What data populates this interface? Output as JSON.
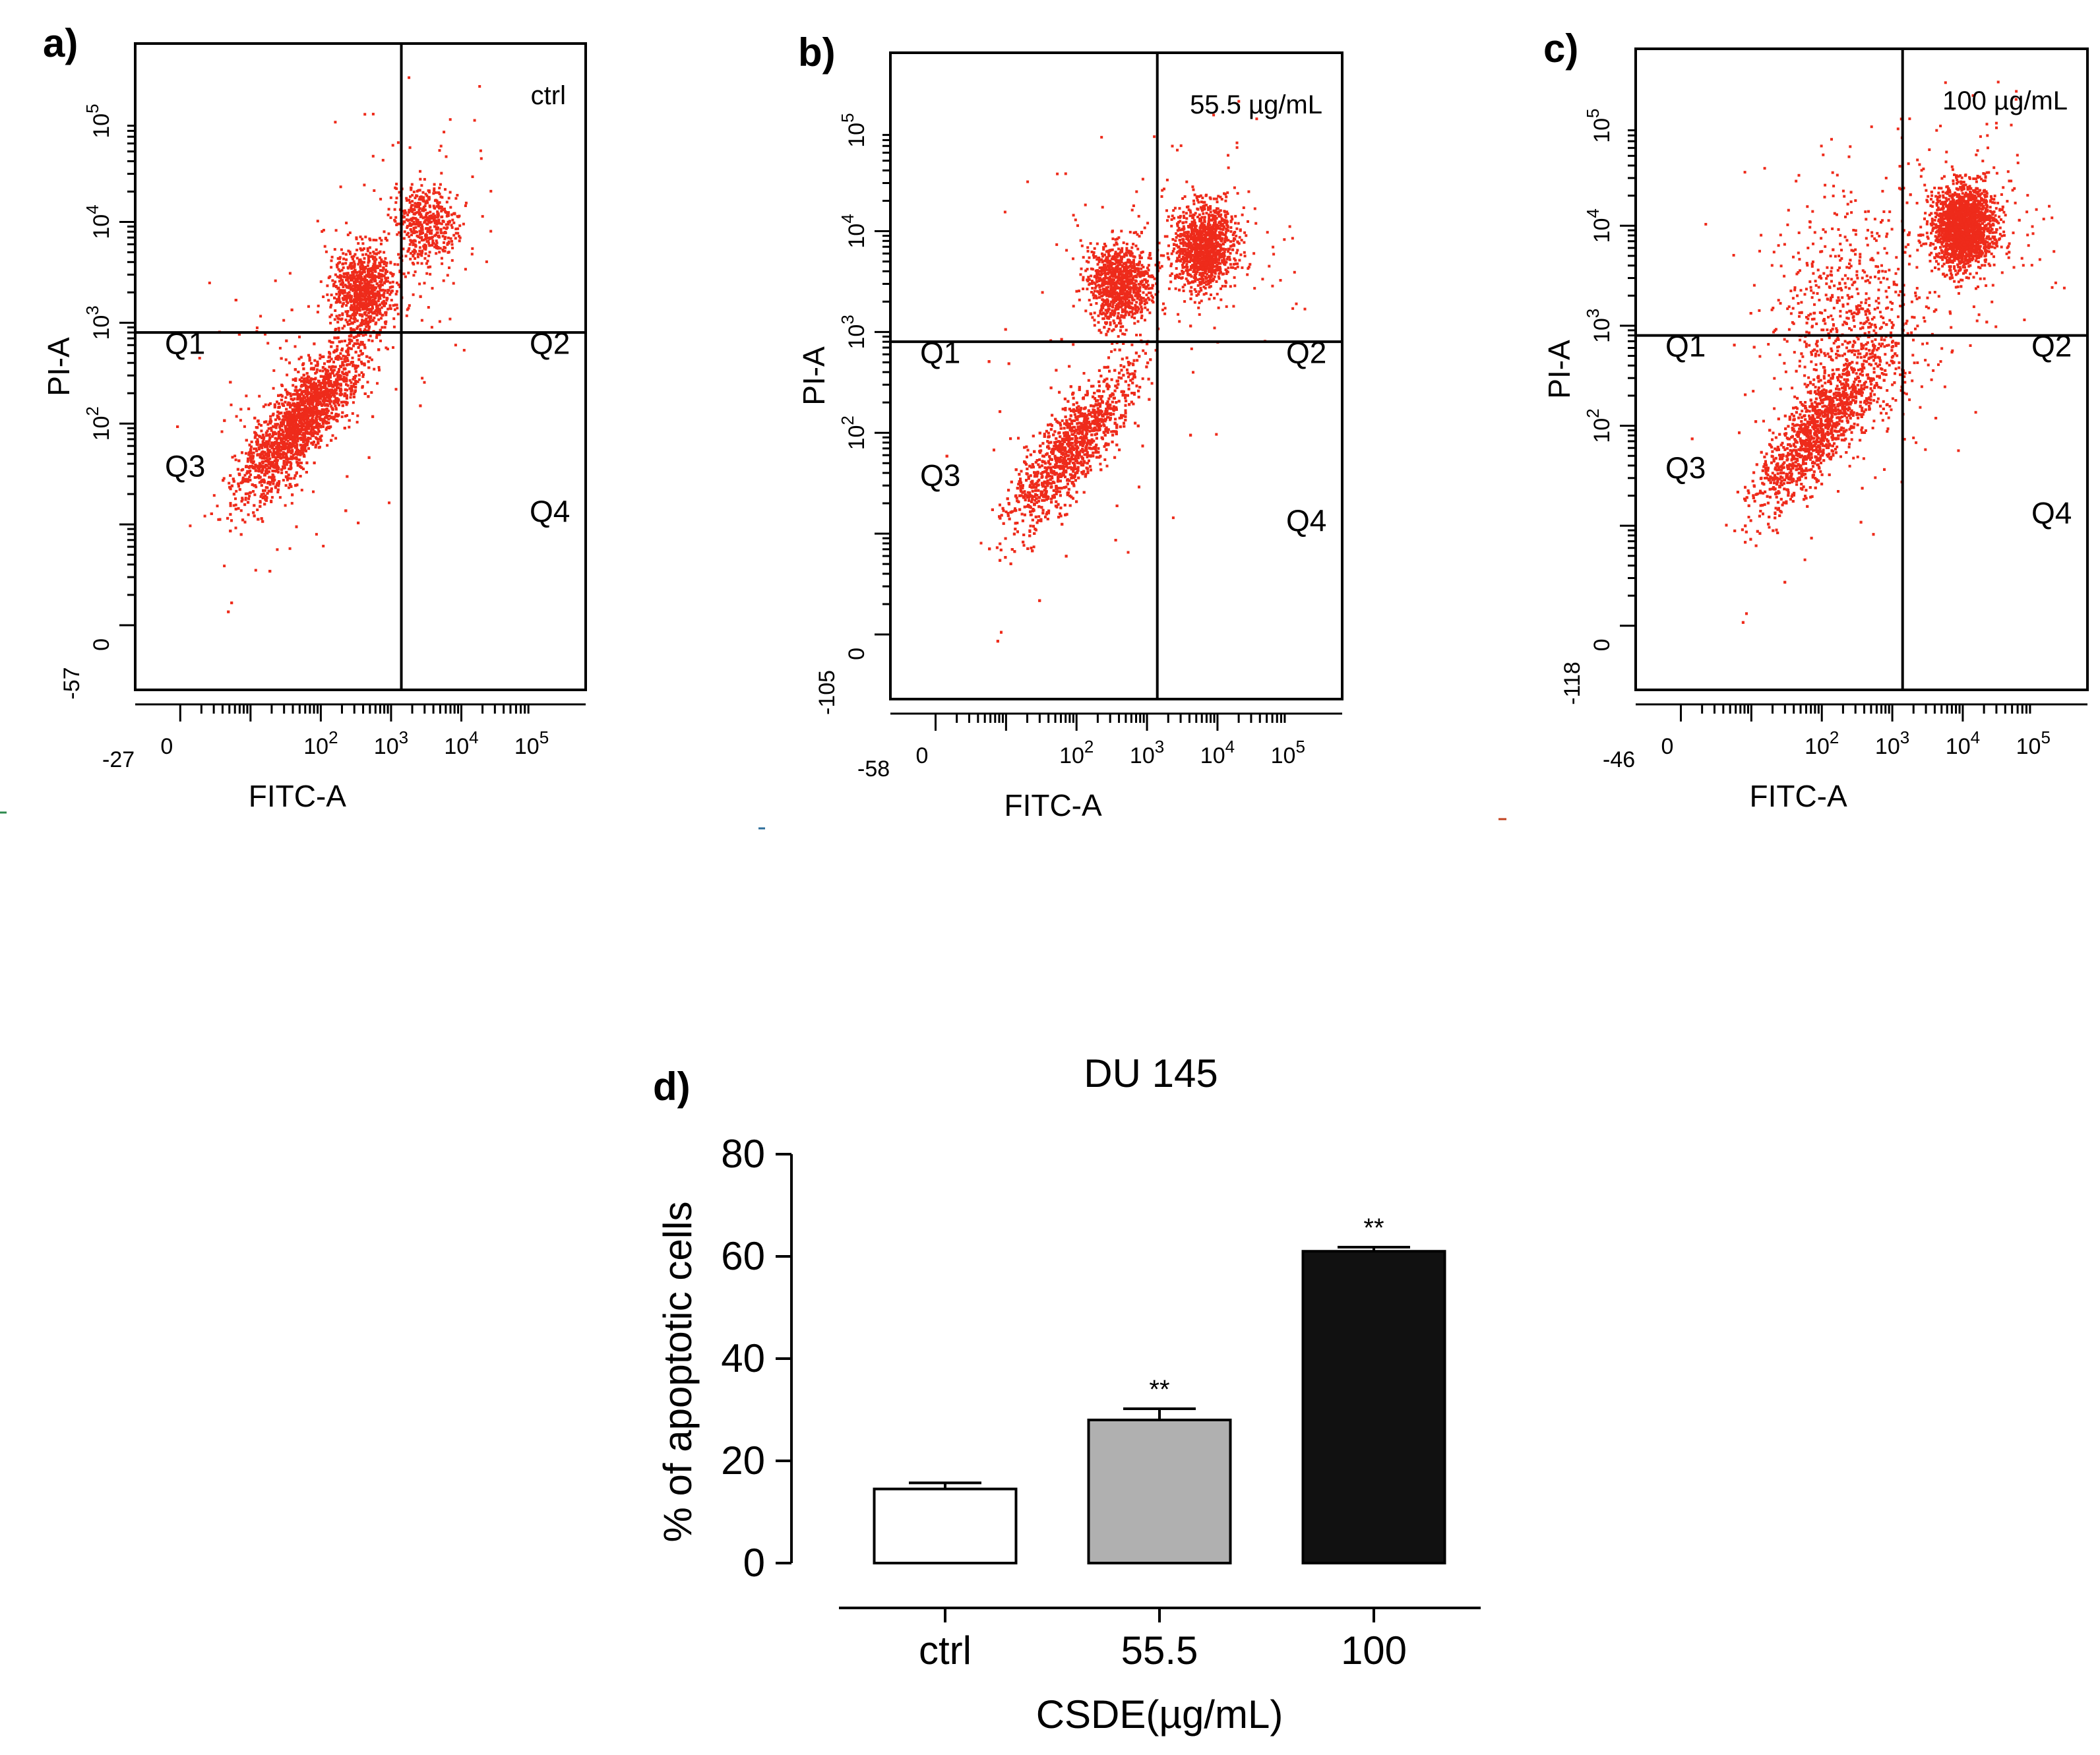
{
  "chart_data": [
    {
      "type": "scatter",
      "panel_label": "a)",
      "condition_label": "ctrl",
      "xlabel": "FITC-A",
      "ylabel": "PI-A",
      "x_min_label": "-27",
      "y_min_label": "-57",
      "x_ticks": [
        "0",
        "10^2",
        "10^3",
        "10^4",
        "10^5"
      ],
      "y_ticks": [
        "0",
        "10^2",
        "10^3",
        "10^4",
        "10^5"
      ],
      "quadrants": [
        "Q1",
        "Q2",
        "Q3",
        "Q4"
      ],
      "gate": {
        "x": 1400,
        "y": 800
      },
      "point_color": "#ee2b1b",
      "populations": [
        {
          "quadrant": "Q3",
          "cx_log": 1.7,
          "cy_log": 2.05,
          "share": 0.72,
          "elongated": true
        },
        {
          "quadrant": "Q1",
          "cx_log": 2.6,
          "cy_log": 3.35,
          "share": 0.18
        },
        {
          "quadrant": "Q2",
          "cx_log": 3.5,
          "cy_log": 4.0,
          "share": 0.1
        }
      ]
    },
    {
      "type": "scatter",
      "panel_label": "b)",
      "condition_label": "55.5 µg/mL",
      "xlabel": "FITC-A",
      "ylabel": "PI-A",
      "x_min_label": "-58",
      "y_min_label": "-105",
      "x_ticks": [
        "0",
        "10^2",
        "10^3",
        "10^4",
        "10^5"
      ],
      "y_ticks": [
        "0",
        "10^2",
        "10^3",
        "10^4",
        "10^5"
      ],
      "quadrants": [
        "Q1",
        "Q2",
        "Q3",
        "Q4"
      ],
      "gate": {
        "x": 1400,
        "y": 800
      },
      "point_color": "#ee2b1b",
      "populations": [
        {
          "quadrant": "Q3",
          "cx_log": 1.9,
          "cy_log": 1.85,
          "share": 0.55,
          "elongated": true
        },
        {
          "quadrant": "Q1",
          "cx_log": 2.6,
          "cy_log": 3.5,
          "share": 0.2
        },
        {
          "quadrant": "Q2",
          "cx_log": 3.8,
          "cy_log": 3.85,
          "share": 0.25
        }
      ]
    },
    {
      "type": "scatter",
      "panel_label": "c)",
      "condition_label": "100 µg/mL",
      "xlabel": "FITC-A",
      "ylabel": "PI-A",
      "x_min_label": "-46",
      "y_min_label": "-118",
      "x_ticks": [
        "0",
        "10^2",
        "10^3",
        "10^4",
        "10^5"
      ],
      "y_ticks": [
        "0",
        "10^2",
        "10^3",
        "10^4",
        "10^5"
      ],
      "quadrants": [
        "Q1",
        "Q2",
        "Q3",
        "Q4"
      ],
      "gate": {
        "x": 1400,
        "y": 800
      },
      "point_color": "#ee2b1b",
      "populations": [
        {
          "quadrant": "Q3",
          "cx_log": 1.9,
          "cy_log": 1.95,
          "share": 0.45,
          "elongated": true
        },
        {
          "quadrant": "Q2",
          "cx_log": 4.0,
          "cy_log": 4.0,
          "share": 0.4
        },
        {
          "quadrant": "Q1",
          "cx_log": 2.4,
          "cy_log": 3.0,
          "share": 0.15,
          "diffuse": true
        }
      ]
    },
    {
      "type": "bar",
      "panel_label": "d)",
      "title": "DU 145",
      "categories": [
        "ctrl",
        "55.5",
        "100"
      ],
      "values": [
        14.5,
        28,
        61
      ],
      "errors": [
        1.2,
        2.2,
        0.8
      ],
      "significance": [
        "",
        "**",
        "**"
      ],
      "colors": [
        "#ffffff",
        "#b0b0b0",
        "#111111"
      ],
      "xlabel": "CSDE(µg/mL)",
      "ylabel": "% of apoptotic cells",
      "yticks": [
        0,
        20,
        40,
        60,
        80
      ],
      "ylim": [
        0,
        80
      ]
    }
  ]
}
